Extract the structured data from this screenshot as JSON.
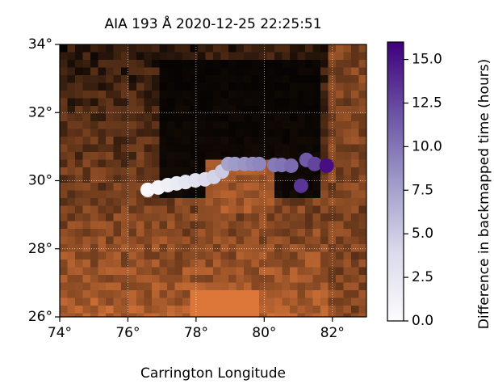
{
  "chart_data": {
    "type": "scatter",
    "title": "AIA 193 Å 2020-12-25 22:25:51",
    "xlabel": "Carrington Longitude",
    "colorbar_label": "Difference in backmapped time (hours)",
    "colormap": "Purples",
    "x": [
      76.58,
      76.89,
      77.17,
      77.43,
      77.69,
      77.98,
      78.26,
      78.52,
      78.76,
      78.95,
      79.14,
      79.42,
      79.66,
      79.85,
      80.3,
      80.51,
      80.79,
      81.24,
      81.48,
      81.83,
      81.08
    ],
    "values": [
      29.73,
      29.8,
      29.87,
      29.92,
      29.96,
      30.01,
      30.04,
      30.11,
      30.27,
      30.49,
      30.49,
      30.49,
      30.49,
      30.49,
      30.46,
      30.46,
      30.44,
      30.61,
      30.49,
      30.44,
      29.85
    ],
    "color_values": [
      0.3,
      0.9,
      1.5,
      2.0,
      2.6,
      3.2,
      3.8,
      4.4,
      5.0,
      7.5,
      7.9,
      8.3,
      8.7,
      9.1,
      9.7,
      10.1,
      10.6,
      11.5,
      12.6,
      15.3,
      13.4
    ],
    "xlim": [
      74,
      83
    ],
    "ylim": [
      26,
      34
    ],
    "clim": [
      0,
      16
    ],
    "xticks": [
      {
        "value": 74,
        "label": "74°"
      },
      {
        "value": 76,
        "label": "76°"
      },
      {
        "value": 78,
        "label": "78°"
      },
      {
        "value": 80,
        "label": "80°"
      },
      {
        "value": 82,
        "label": "82°"
      }
    ],
    "yticks": [
      {
        "value": 26,
        "label": "26°"
      },
      {
        "value": 28,
        "label": "28°"
      },
      {
        "value": 30,
        "label": "30°"
      },
      {
        "value": 32,
        "label": "32°"
      },
      {
        "value": 34,
        "label": "34°"
      }
    ],
    "cticks": [
      {
        "value": 0,
        "label": "0.0"
      },
      {
        "value": 2.5,
        "label": "2.5"
      },
      {
        "value": 5,
        "label": "5.0"
      },
      {
        "value": 7.5,
        "label": "7.5"
      },
      {
        "value": 10,
        "label": "10.0"
      },
      {
        "value": 12.5,
        "label": "12.5"
      },
      {
        "value": 15,
        "label": "15.0"
      }
    ],
    "grid": true
  }
}
